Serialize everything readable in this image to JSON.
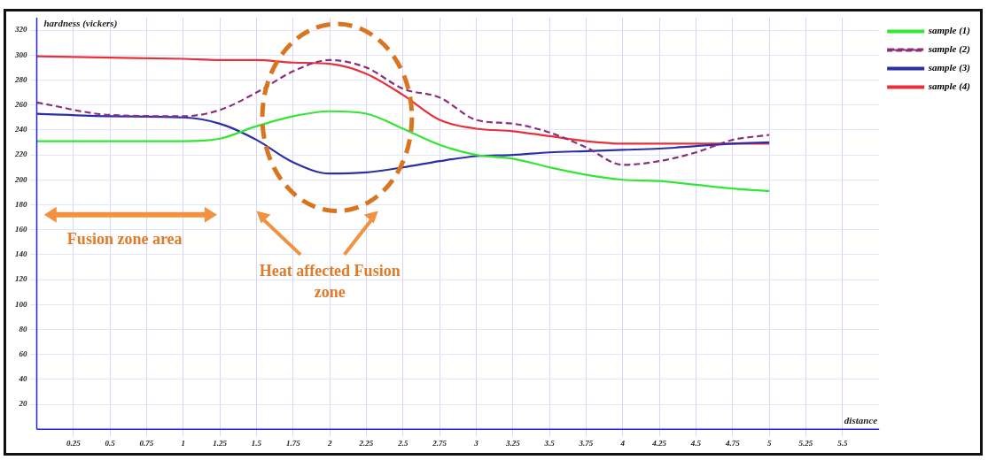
{
  "chart_data": {
    "type": "line",
    "xlabel": "distance",
    "ylabel": "hardness (vickers)",
    "xlim": [
      0,
      5.75
    ],
    "ylim": [
      0,
      330
    ],
    "xticks": [
      0.25,
      0.5,
      0.75,
      1,
      1.25,
      1.5,
      1.75,
      2,
      2.25,
      2.5,
      2.75,
      3,
      3.25,
      3.5,
      3.75,
      4,
      4.25,
      4.5,
      4.75,
      5,
      5.25,
      5.5
    ],
    "yticks": [
      20,
      40,
      60,
      80,
      100,
      120,
      140,
      160,
      180,
      200,
      220,
      240,
      260,
      280,
      300,
      320
    ],
    "grid": true,
    "legend": "top right",
    "marker": "none",
    "x": [
      0,
      0.5,
      1,
      1.25,
      1.5,
      1.75,
      2,
      2.25,
      2.5,
      2.75,
      3,
      3.25,
      3.5,
      3.75,
      4,
      4.25,
      4.5,
      4.75,
      5
    ],
    "series": [
      {
        "name": "sample (1)",
        "color": "#33e633",
        "line_style": "solid",
        "values": [
          231,
          231,
          231,
          233,
          243,
          251,
          255,
          253,
          241,
          228,
          220,
          217,
          210,
          204,
          200,
          199,
          196,
          193,
          191
        ]
      },
      {
        "name": "sample (2)",
        "color": "#8b2f7a",
        "line_style": "dashed",
        "values": [
          262,
          252,
          251,
          256,
          270,
          287,
          296,
          290,
          273,
          266,
          248,
          245,
          238,
          226,
          212,
          215,
          222,
          232,
          236
        ]
      },
      {
        "name": "sample (3)",
        "color": "#2b2fa6",
        "line_style": "solid",
        "values": [
          253,
          251,
          250,
          245,
          232,
          214,
          205,
          206,
          210,
          215,
          219,
          220,
          222,
          223,
          224,
          225,
          227,
          229,
          230
        ]
      },
      {
        "name": "sample (4)",
        "color": "#e8303a",
        "line_style": "solid",
        "values": [
          299,
          298,
          297,
          296,
          296,
          294,
          293,
          285,
          268,
          248,
          241,
          239,
          235,
          231,
          229,
          229,
          229,
          229,
          229
        ]
      }
    ],
    "annotations": [
      "Fusion zone area",
      "Heat affected Fusion zone"
    ]
  }
}
